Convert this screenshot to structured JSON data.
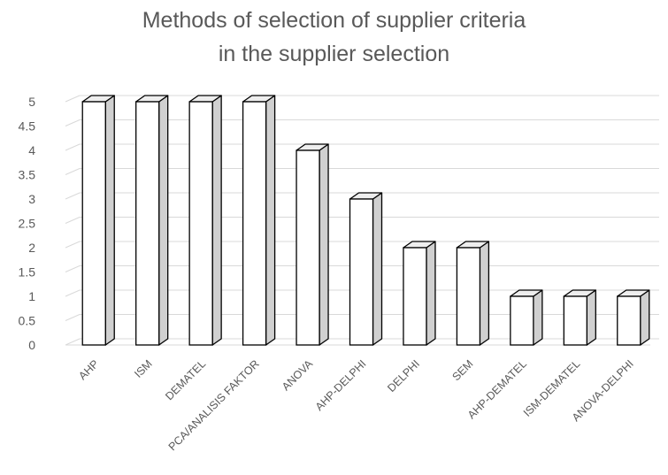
{
  "chart_data": {
    "type": "bar",
    "title_lines": [
      "Methods of selection of supplier criteria",
      "in the supplier selection"
    ],
    "xlabel": "",
    "ylabel": "",
    "categories": [
      "AHP",
      "ISM",
      "DEMATEL",
      "PCA/ANALISIS FAKTOR",
      "ANOVA",
      "AHP-DELPHI",
      "DELPHI",
      "SEM",
      "AHP-DEMATEL",
      "ISM-DEMATEL",
      "ANOVA-DELPHI"
    ],
    "values": [
      5,
      5,
      5,
      5,
      4,
      3,
      2,
      2,
      1,
      1,
      1
    ],
    "ylim": [
      0,
      5
    ],
    "yticks": [
      "0",
      "0.5",
      "1",
      "1.5",
      "2",
      "2.5",
      "3",
      "3.5",
      "4",
      "4.5",
      "5"
    ],
    "grid": true,
    "legend": "none",
    "style": "3d-column",
    "colors": {
      "bar_face": "#ffffff",
      "bar_side": "#d0d0d0",
      "bar_top": "#eeeeee",
      "bar_outline": "#000000",
      "grid": "#d9d9d9",
      "text": "#595959"
    }
  }
}
